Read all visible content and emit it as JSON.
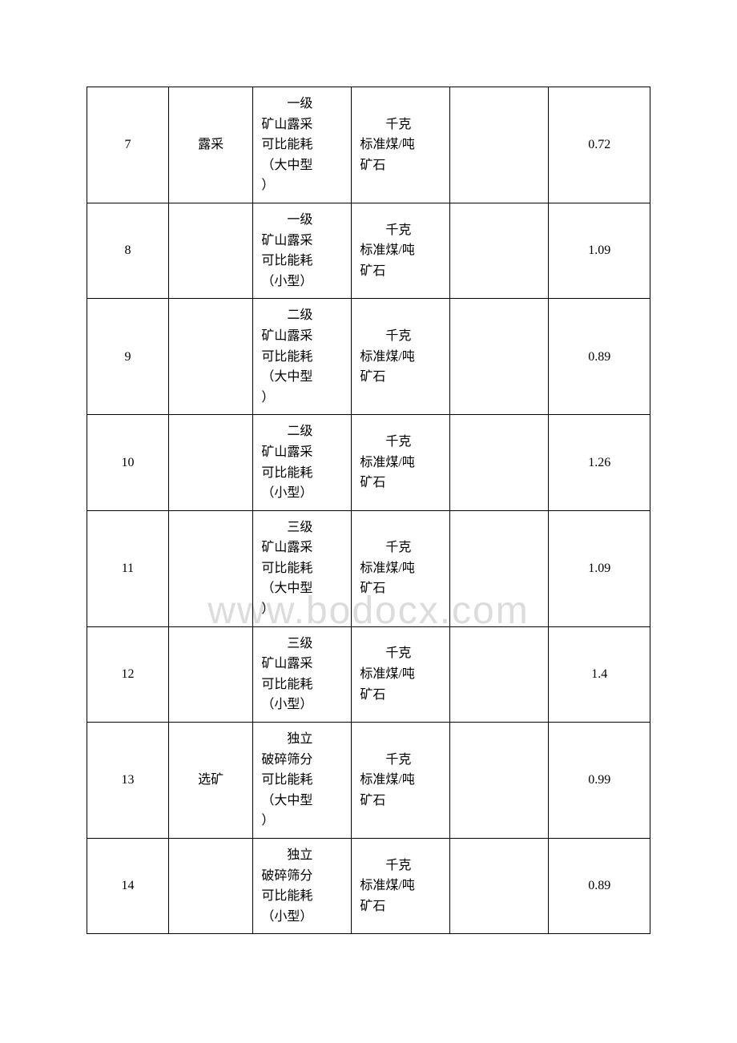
{
  "watermark": "www.bodocx.com",
  "table": {
    "columns": {
      "col1_width": "14.5%",
      "col2_width": "15%",
      "col3_width": "17.5%",
      "col4_width": "17.5%",
      "col5_width": "17.5%",
      "col6_width": "18%"
    },
    "border_color": "#000000",
    "text_color": "#000000",
    "background_color": "#ffffff",
    "font_size": 16,
    "rows": [
      {
        "num": "7",
        "category": "露采",
        "indicator_line1": "一级",
        "indicator_line2": "矿山露采",
        "indicator_line3": "可比能耗",
        "indicator_line4": "（大中型",
        "indicator_line5": "）",
        "unit_line1": "千克",
        "unit_line2": "标准煤/吨",
        "unit_line3": "矿石",
        "col5": "",
        "value": "0.72"
      },
      {
        "num": "8",
        "category": "",
        "indicator_line1": "一级",
        "indicator_line2": "矿山露采",
        "indicator_line3": "可比能耗",
        "indicator_line4": "（小型）",
        "indicator_line5": "",
        "unit_line1": "千克",
        "unit_line2": "标准煤/吨",
        "unit_line3": "矿石",
        "col5": "",
        "value": "1.09"
      },
      {
        "num": "9",
        "category": "",
        "indicator_line1": "二级",
        "indicator_line2": "矿山露采",
        "indicator_line3": "可比能耗",
        "indicator_line4": "（大中型",
        "indicator_line5": "）",
        "unit_line1": "千克",
        "unit_line2": "标准煤/吨",
        "unit_line3": "矿石",
        "col5": "",
        "value": "0.89"
      },
      {
        "num": "10",
        "category": "",
        "indicator_line1": "二级",
        "indicator_line2": "矿山露采",
        "indicator_line3": "可比能耗",
        "indicator_line4": "（小型）",
        "indicator_line5": "",
        "unit_line1": "千克",
        "unit_line2": "标准煤/吨",
        "unit_line3": "矿石",
        "col5": "",
        "value": "1.26"
      },
      {
        "num": "11",
        "category": "",
        "indicator_line1": "三级",
        "indicator_line2": "矿山露采",
        "indicator_line3": "可比能耗",
        "indicator_line4": "（大中型",
        "indicator_line5": "）",
        "unit_line1": "千克",
        "unit_line2": "标准煤/吨",
        "unit_line3": "矿石",
        "col5": "",
        "value": "1.09"
      },
      {
        "num": "12",
        "category": "",
        "indicator_line1": "三级",
        "indicator_line2": "矿山露采",
        "indicator_line3": "可比能耗",
        "indicator_line4": "（小型）",
        "indicator_line5": "",
        "unit_line1": "千克",
        "unit_line2": "标准煤/吨",
        "unit_line3": "矿石",
        "col5": "",
        "value": "1.4"
      },
      {
        "num": "13",
        "category": "选矿",
        "indicator_line1": "独立",
        "indicator_line2": "破碎筛分",
        "indicator_line3": "可比能耗",
        "indicator_line4": "（大中型",
        "indicator_line5": "）",
        "unit_line1": "千克",
        "unit_line2": "标准煤/吨",
        "unit_line3": "矿石",
        "col5": "",
        "value": "0.99"
      },
      {
        "num": "14",
        "category": "",
        "indicator_line1": "独立",
        "indicator_line2": "破碎筛分",
        "indicator_line3": "可比能耗",
        "indicator_line4": "（小型）",
        "indicator_line5": "",
        "unit_line1": "千克",
        "unit_line2": "标准煤/吨",
        "unit_line3": "矿石",
        "col5": "",
        "value": "0.89"
      }
    ]
  }
}
